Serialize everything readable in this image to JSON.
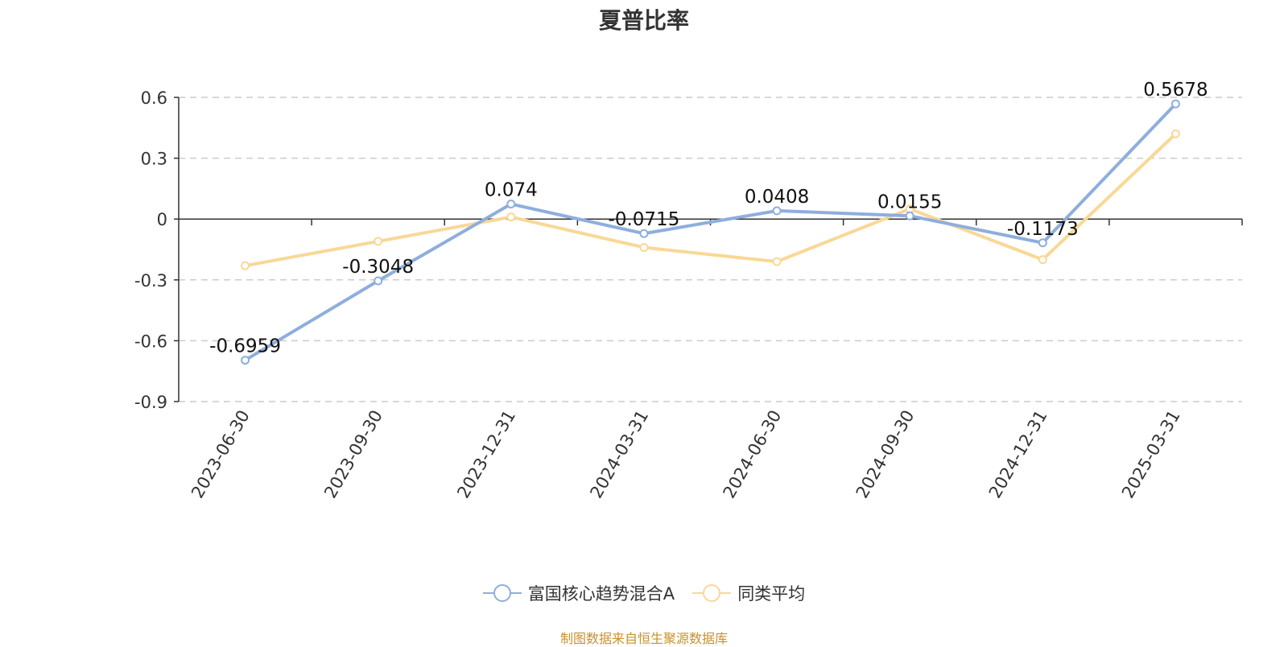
{
  "chart_data": {
    "type": "line",
    "title": "夏普比率",
    "categories": [
      "2023-06-30",
      "2023-09-30",
      "2023-12-31",
      "2024-03-31",
      "2024-06-30",
      "2024-09-30",
      "2024-12-31",
      "2025-03-31"
    ],
    "series": [
      {
        "name": "富国核心趋势混合A",
        "color": "#8eaedd",
        "values": [
          -0.6959,
          -0.3048,
          0.074,
          -0.0715,
          0.0408,
          0.0155,
          -0.1173,
          0.5678
        ],
        "labels": [
          "-0.6959",
          "-0.3048",
          "0.074",
          "-0.0715",
          "0.0408",
          "0.0155",
          "-0.1173",
          "0.5678"
        ]
      },
      {
        "name": "同类平均",
        "color": "#f9d896",
        "values": [
          -0.23,
          -0.11,
          0.01,
          -0.14,
          -0.21,
          0.05,
          -0.2,
          0.42
        ]
      }
    ],
    "yticks": [
      "0.6",
      "0.3",
      "0",
      "-0.3",
      "-0.6",
      "-0.9"
    ],
    "ytick_values": [
      0.6,
      0.3,
      0,
      -0.3,
      -0.6,
      -0.9
    ],
    "ylim": [
      -0.9,
      0.6
    ],
    "grid": true,
    "legend_position": "bottom"
  },
  "footer": {
    "source": "制图数据来自恒生聚源数据库"
  }
}
